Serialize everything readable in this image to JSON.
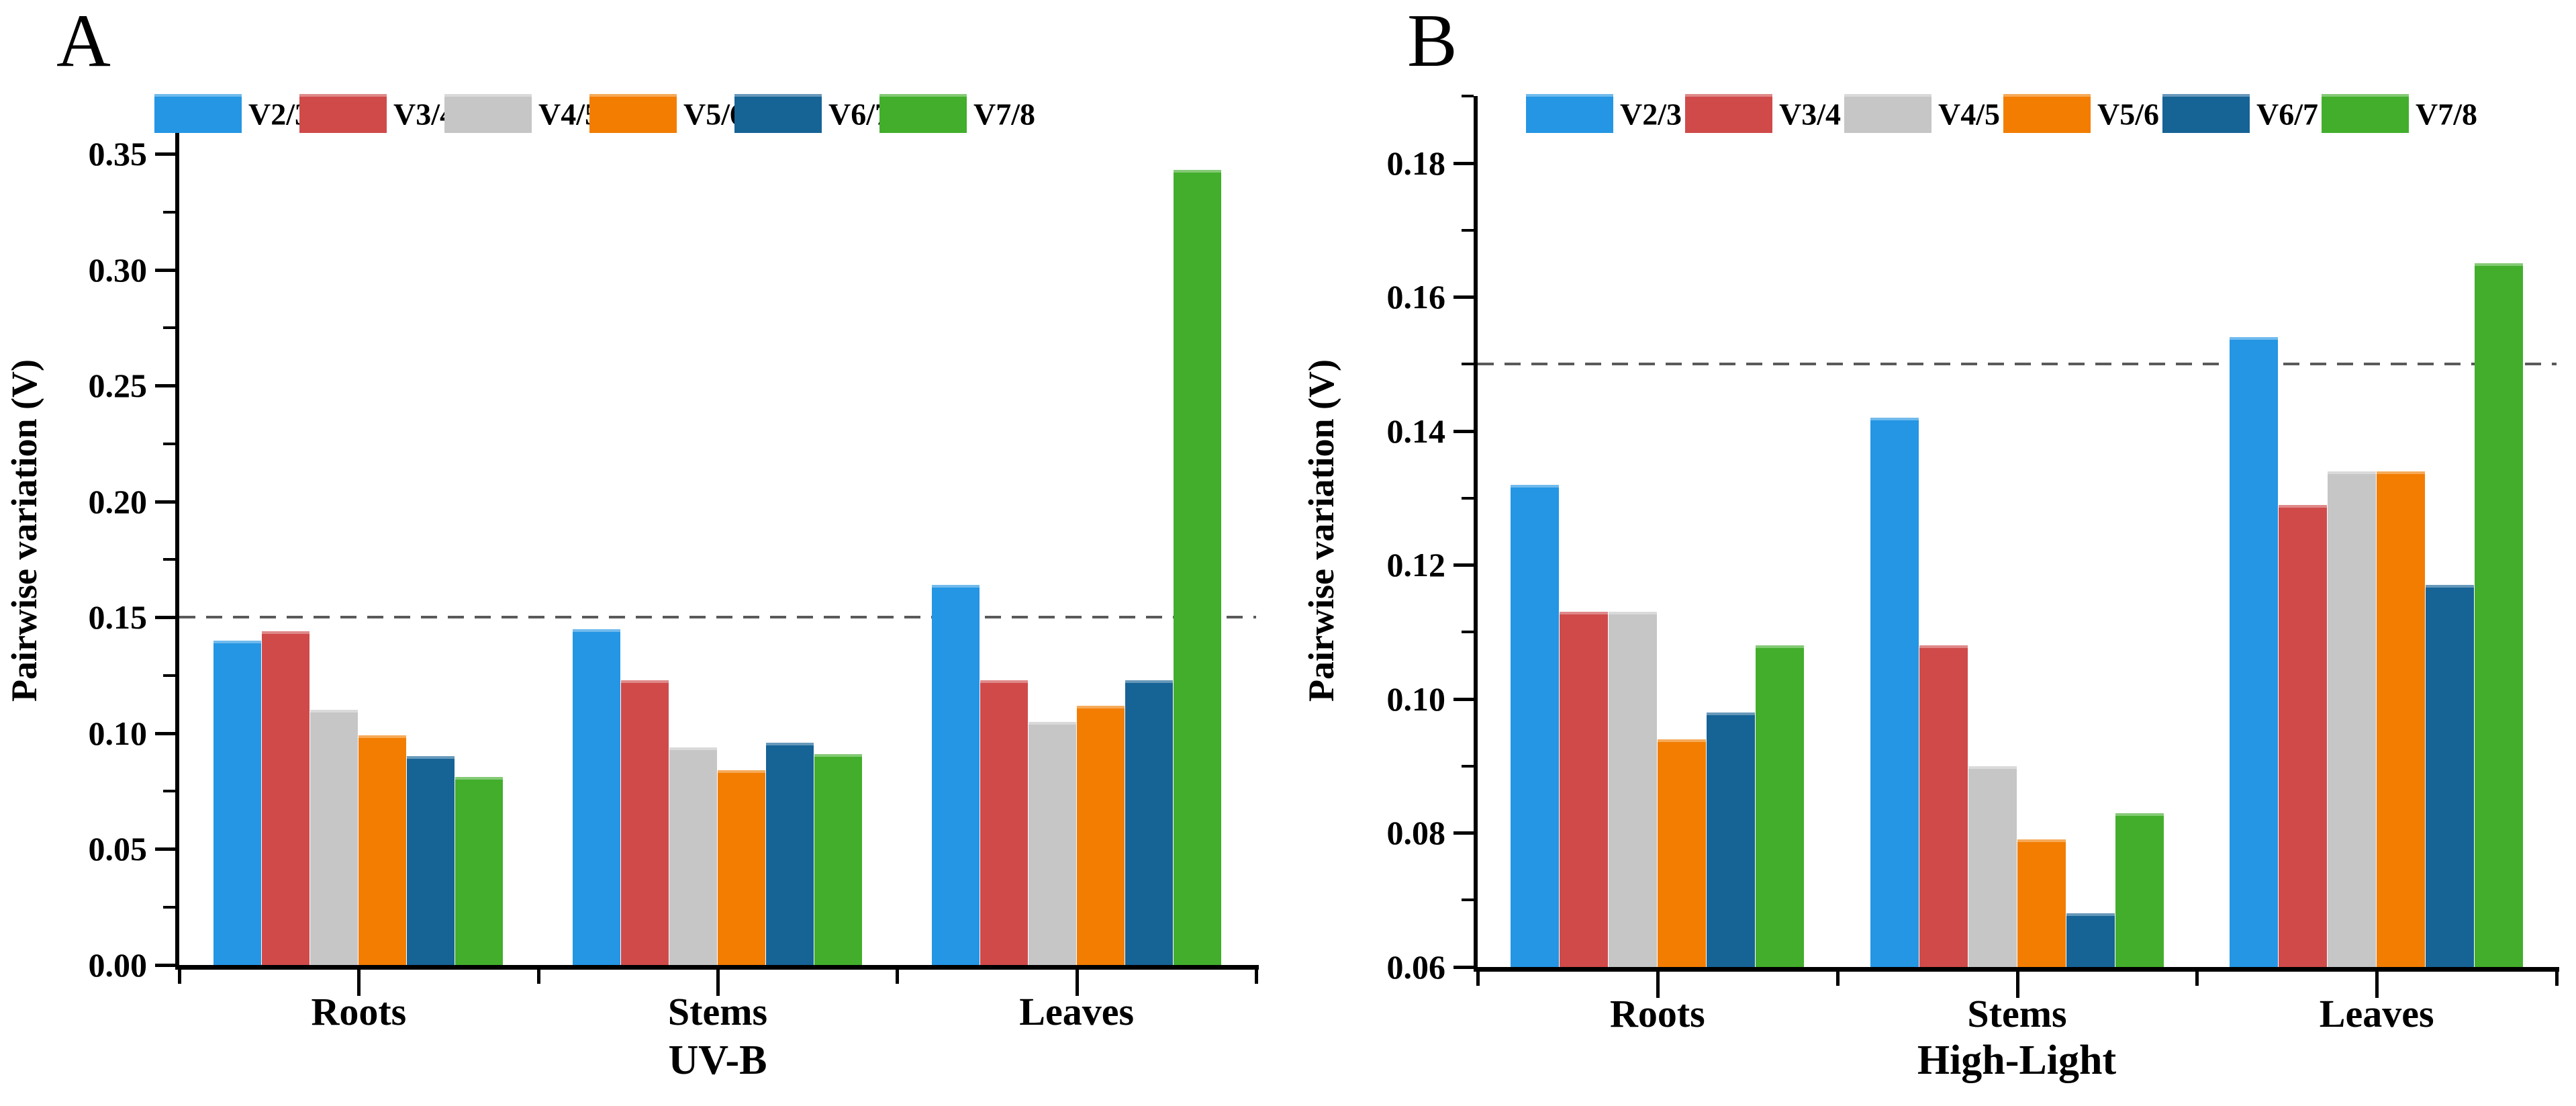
{
  "figure": {
    "panels": [
      {
        "label": "A"
      },
      {
        "label": "B"
      }
    ]
  },
  "chart_data": [
    {
      "type": "bar",
      "panel": "A",
      "title": "UV-B",
      "ylabel": "Pairwise variation (V)",
      "categories": [
        "Roots",
        "Stems",
        "Leaves"
      ],
      "series": [
        {
          "name": "V2/3",
          "color": "#2496E4",
          "values": [
            0.14,
            0.145,
            0.164
          ]
        },
        {
          "name": "V3/4",
          "color": "#D04A4A",
          "values": [
            0.144,
            0.123,
            0.123
          ]
        },
        {
          "name": "V4/5",
          "color": "#C6C6C6",
          "values": [
            0.11,
            0.094,
            0.105
          ]
        },
        {
          "name": "V5/6",
          "color": "#F27D00",
          "values": [
            0.099,
            0.084,
            0.112
          ]
        },
        {
          "name": "V6/7",
          "color": "#166396",
          "values": [
            0.09,
            0.096,
            0.123
          ]
        },
        {
          "name": "V7/8",
          "color": "#42AE2B",
          "values": [
            0.081,
            0.091,
            0.343
          ]
        }
      ],
      "ylim": [
        0.0,
        0.375
      ],
      "yticks": [
        0.0,
        0.05,
        0.1,
        0.15,
        0.2,
        0.25,
        0.3,
        0.35
      ],
      "ytick_labels": [
        "0.00",
        "0.05",
        "0.10",
        "0.15",
        "0.20",
        "0.25",
        "0.30",
        "0.35"
      ],
      "yticks_minor": [
        0.025,
        0.075,
        0.125,
        0.175,
        0.225,
        0.275,
        0.325,
        0.375
      ],
      "reference_line": 0.15,
      "grid": false,
      "legend_position": "top"
    },
    {
      "type": "bar",
      "panel": "B",
      "title": "High-Light",
      "ylabel": "Pairwise variation (V)",
      "categories": [
        "Roots",
        "Stems",
        "Leaves"
      ],
      "series": [
        {
          "name": "V2/3",
          "color": "#2496E4",
          "values": [
            0.132,
            0.142,
            0.154
          ]
        },
        {
          "name": "V3/4",
          "color": "#D04A4A",
          "values": [
            0.113,
            0.108,
            0.129
          ]
        },
        {
          "name": "V4/5",
          "color": "#C6C6C6",
          "values": [
            0.113,
            0.09,
            0.134
          ]
        },
        {
          "name": "V5/6",
          "color": "#F27D00",
          "values": [
            0.094,
            0.079,
            0.134
          ]
        },
        {
          "name": "V6/7",
          "color": "#166396",
          "values": [
            0.098,
            0.068,
            0.117
          ]
        },
        {
          "name": "V7/8",
          "color": "#42AE2B",
          "values": [
            0.108,
            0.083,
            0.165
          ]
        }
      ],
      "ylim": [
        0.06,
        0.19
      ],
      "yticks": [
        0.06,
        0.08,
        0.1,
        0.12,
        0.14,
        0.16,
        0.18
      ],
      "ytick_labels": [
        "0.06",
        "0.08",
        "0.10",
        "0.12",
        "0.14",
        "0.16",
        "0.18"
      ],
      "yticks_minor": [
        0.07,
        0.09,
        0.11,
        0.13,
        0.15,
        0.17,
        0.19
      ],
      "reference_line": 0.15,
      "grid": false,
      "legend_position": "top"
    }
  ]
}
